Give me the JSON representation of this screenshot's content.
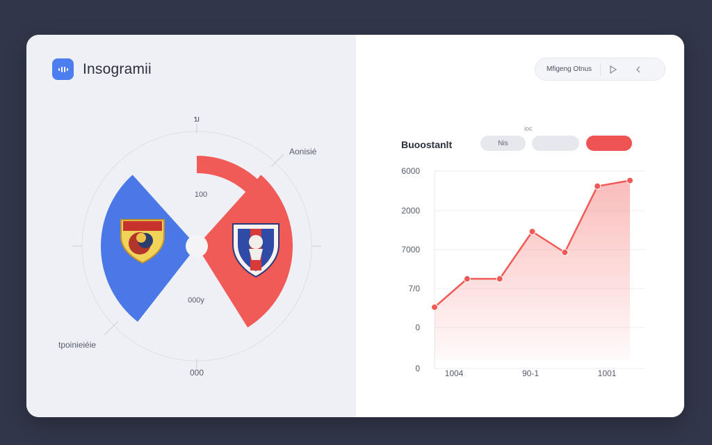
{
  "app": {
    "title": "Insogramii",
    "icon": "app-icon"
  },
  "radial": {
    "label_top": "ນ",
    "label_callout": "Aonisié",
    "label_left": "",
    "label_right": "",
    "label_bottom_left": "tpoinieiéie",
    "label_bottom": "000",
    "center_top_label": "100 ",
    "center_bottom_label": "000y",
    "colors": {
      "blue": "#4a78e6",
      "red": "#f05a57",
      "gray": "#dcdde2"
    },
    "left_icon": "team-crest-icon",
    "right_icon": "team-shield-icon"
  },
  "toolbar": {
    "label": "Mfigeng Otnus",
    "play_icon": "play-icon",
    "back_icon": "chevron-left-icon"
  },
  "chart_panel": {
    "title": "Buoostanlt",
    "mini_label": "ioc",
    "chips": [
      "Nis",
      "",
      ""
    ]
  },
  "chart_data": {
    "type": "area",
    "title": "Buoostanlt",
    "xlabel": "",
    "ylabel": "",
    "y_tick_labels": [
      "0",
      "0",
      "7/0",
      "7000",
      "2000",
      "6000"
    ],
    "x_tick_labels": [
      "1004 ",
      "90-1 ",
      "1001 "
    ],
    "x": [
      0,
      1,
      2,
      3,
      4,
      5,
      6
    ],
    "values": [
      1.4,
      2.15,
      2.15,
      3.4,
      2.85,
      4.6,
      4.75
    ],
    "ylim": [
      0,
      5
    ],
    "grid": true,
    "color": "#ef5a57"
  }
}
